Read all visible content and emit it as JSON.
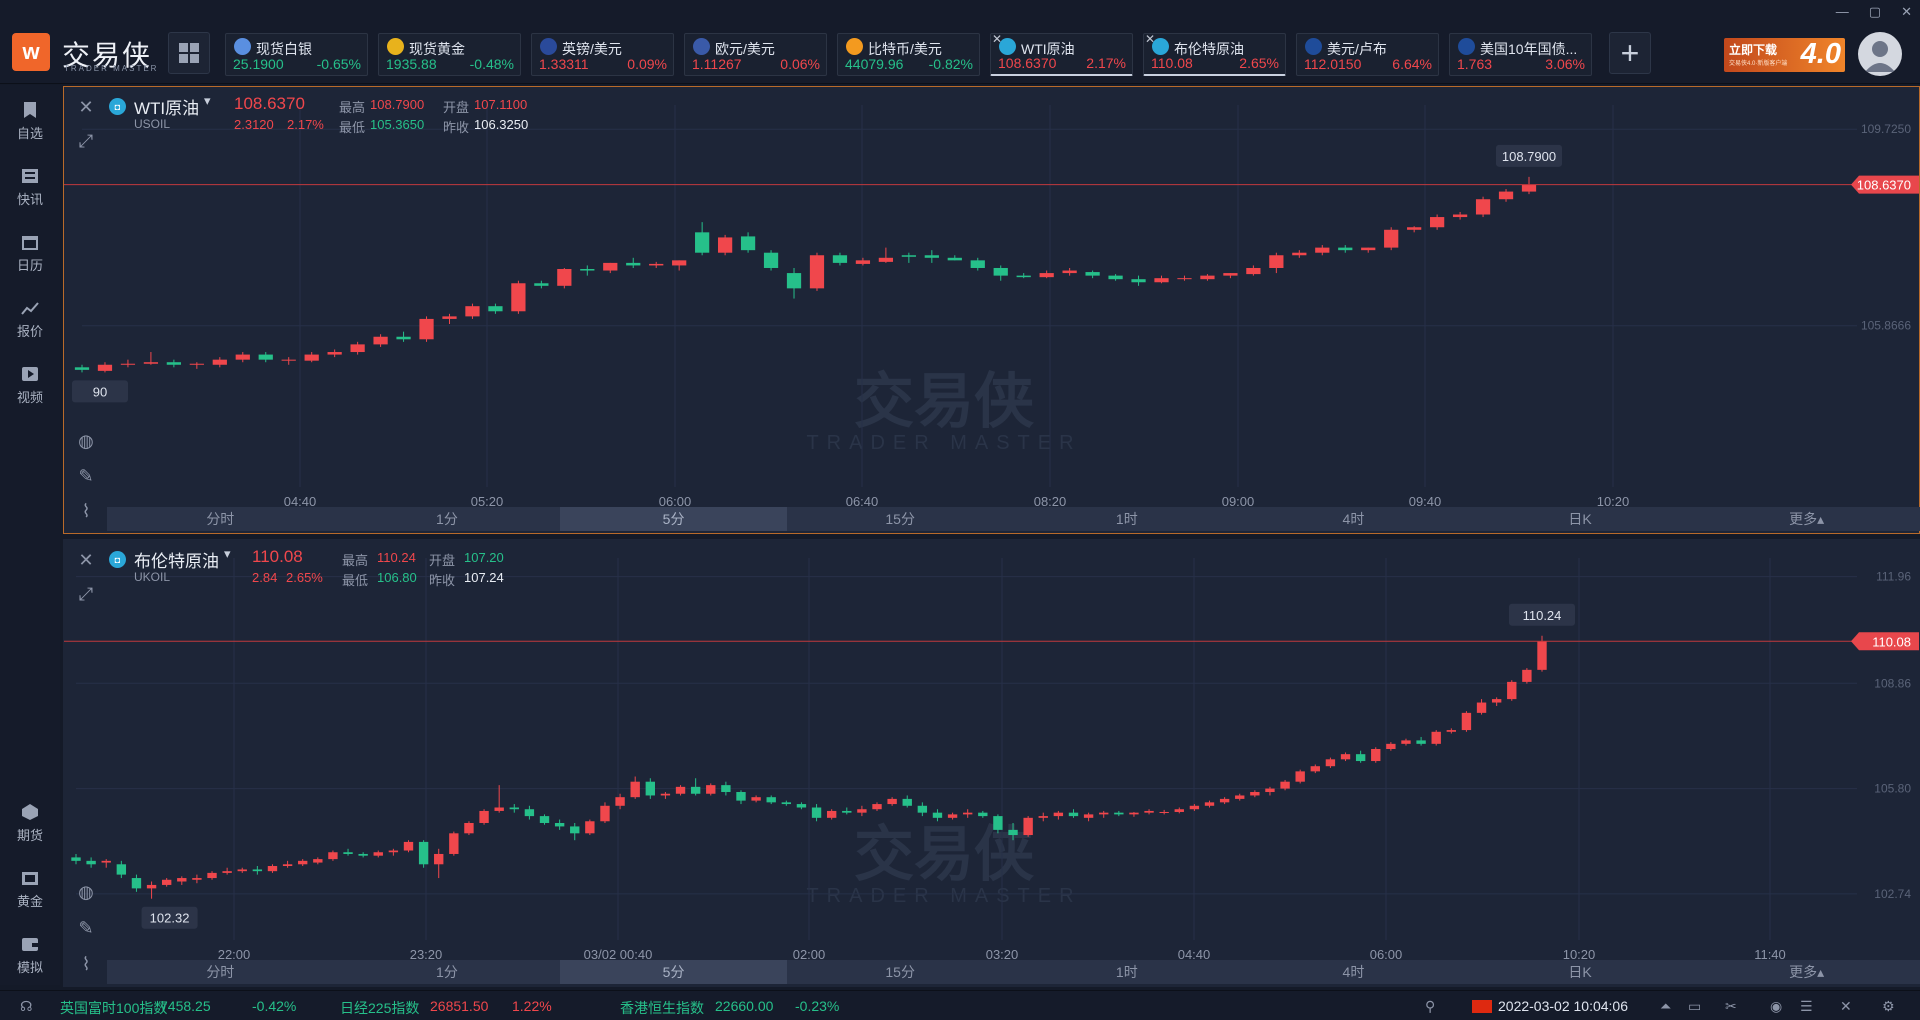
{
  "app": {
    "logo_cn": "交易侠",
    "logo_en": "TRADER MASTER"
  },
  "colors": {
    "up": "#f0474c",
    "down": "#26c08a",
    "accent": "#f0662a"
  },
  "tickers": [
    {
      "name": "现货白银",
      "price": "25.1900",
      "change": "-0.65%",
      "dir": "dn",
      "icon": "silver-icon",
      "icon_color": "#5a8fe0",
      "closable": false
    },
    {
      "name": "现货黄金",
      "price": "1935.88",
      "change": "-0.48%",
      "dir": "dn",
      "icon": "gold-icon",
      "icon_color": "#e8b21c",
      "closable": false
    },
    {
      "name": "英镑/美元",
      "price": "1.33311",
      "change": "0.09%",
      "dir": "up",
      "icon": "uk-flag-icon",
      "icon_color": "#2a4a9a",
      "closable": false
    },
    {
      "name": "欧元/美元",
      "price": "1.11267",
      "change": "0.06%",
      "dir": "up",
      "icon": "us-flag-icon",
      "icon_color": "#3a5aa8",
      "closable": false
    },
    {
      "name": "比特币/美元",
      "price": "44079.96",
      "change": "-0.82%",
      "dir": "dn",
      "icon": "bitcoin-icon",
      "icon_color": "#f39a1f",
      "closable": false
    },
    {
      "name": "WTI原油",
      "price": "108.6370",
      "change": "2.17%",
      "dir": "up",
      "icon": "oil-icon",
      "icon_color": "#2aa7d8",
      "closable": true,
      "active": true
    },
    {
      "name": "布伦特原油",
      "price": "110.08",
      "change": "2.65%",
      "dir": "up",
      "icon": "oil-icon",
      "icon_color": "#2aa7d8",
      "closable": true,
      "active": true
    },
    {
      "name": "美元/卢布",
      "price": "112.0150",
      "change": "6.64%",
      "dir": "up",
      "icon": "bar-chart-icon",
      "icon_color": "#1f4c9a",
      "closable": false
    },
    {
      "name": "美国10年国债...",
      "price": "1.763",
      "change": "3.06%",
      "dir": "up",
      "icon": "bar-chart-icon",
      "icon_color": "#1f4c9a",
      "closable": false
    }
  ],
  "banner": {
    "line1": "立即下载",
    "line2": "交易侠4.0·新版客户端",
    "line3": "4.0"
  },
  "window_controls": [
    "—",
    "▢",
    "✕"
  ],
  "sidebar_top": [
    {
      "label": "自选",
      "icon": "bookmark-icon"
    },
    {
      "label": "快讯",
      "icon": "news-icon"
    },
    {
      "label": "日历",
      "icon": "calendar-icon"
    },
    {
      "label": "报价",
      "icon": "quote-chart-icon"
    },
    {
      "label": "视频",
      "icon": "video-icon"
    }
  ],
  "sidebar_bottom": [
    {
      "label": "期货",
      "icon": "futures-icon"
    },
    {
      "label": "黄金",
      "icon": "gold-bar-icon"
    },
    {
      "label": "模拟",
      "icon": "wallet-icon"
    }
  ],
  "timeframes": [
    "分时",
    "1分",
    "5分",
    "15分",
    "1时",
    "4时",
    "日K",
    "更多▴"
  ],
  "watermark": {
    "cn": "交易侠",
    "en": "TRADER MASTER"
  },
  "panel1": {
    "name": "WTI原油",
    "symbol": "USOIL",
    "last": "108.6370",
    "chg": "2.3120",
    "pct": "2.17%",
    "high_label": "最高",
    "high": "108.7900",
    "open_label": "开盘",
    "open": "107.1100",
    "low_label": "最低",
    "low": "105.3650",
    "prev_label": "昨收",
    "prev": "106.3250",
    "axis_labels": [
      "109.7250",
      "105.8666"
    ],
    "time_labels": [
      "04:40",
      "05:20",
      "06:00",
      "06:40",
      "08:20",
      "09:00",
      "09:40",
      "10:20"
    ],
    "last_tag": "108.6370",
    "high_tag": "108.7900",
    "low_tag": "105.3650",
    "low_tag_partial": "90",
    "active_tf": 2
  },
  "panel2": {
    "name": "布伦特原油",
    "symbol": "UKOIL",
    "last": "110.08",
    "chg": "2.84",
    "pct": "2.65%",
    "high_label": "最高",
    "high": "110.24",
    "open_label": "开盘",
    "open": "107.20",
    "low_label": "最低",
    "low": "106.80",
    "prev_label": "昨收",
    "prev": "107.24",
    "axis_labels": [
      "111.96",
      "108.86",
      "105.80",
      "102.74"
    ],
    "time_labels": [
      "22:00",
      "23:20",
      "03/02 00:40",
      "02:00",
      "03:20",
      "04:40",
      "06:00",
      "10:20",
      "11:40"
    ],
    "last_tag": "110.08",
    "high_tag": "110.24",
    "low_tag": "102.32",
    "active_tf": 2
  },
  "statusbar": {
    "items": [
      {
        "name": "英国富时100指数",
        "value": "7458.25",
        "pct": "-0.42%",
        "dir": "dn"
      },
      {
        "name": "日经225指数",
        "value": "26851.50",
        "pct": "1.22%",
        "dir": "up"
      },
      {
        "name": "香港恒生指数",
        "value": "22660.00",
        "pct": "-0.23%",
        "dir": "dn"
      }
    ],
    "datetime": "2022-03-02 10:04:06"
  },
  "chart_data": [
    {
      "type": "candlestick",
      "title": "WTI原油",
      "ylim": [
        102.7,
        110.2
      ],
      "time_axis": [
        "04:40",
        "05:20",
        "06:00",
        "06:40",
        "08:20",
        "09:00",
        "09:40",
        "10:20"
      ],
      "ohlc": [
        [
          105.05,
          105.1,
          104.95,
          105.0
        ],
        [
          104.98,
          105.15,
          104.95,
          105.1
        ],
        [
          105.1,
          105.2,
          105.05,
          105.12
        ],
        [
          105.12,
          105.35,
          105.1,
          105.15
        ],
        [
          105.15,
          105.2,
          105.05,
          105.1
        ],
        [
          105.1,
          105.15,
          105.02,
          105.12
        ],
        [
          105.1,
          105.25,
          105.05,
          105.2
        ],
        [
          105.2,
          105.35,
          105.15,
          105.3
        ],
        [
          105.3,
          105.35,
          105.15,
          105.2
        ],
        [
          105.18,
          105.25,
          105.1,
          105.2
        ],
        [
          105.18,
          105.35,
          105.15,
          105.3
        ],
        [
          105.3,
          105.4,
          105.25,
          105.35
        ],
        [
          105.35,
          105.55,
          105.3,
          105.5
        ],
        [
          105.5,
          105.7,
          105.45,
          105.65
        ],
        [
          105.65,
          105.75,
          105.55,
          105.6
        ],
        [
          105.6,
          106.05,
          105.55,
          106.0
        ],
        [
          106.0,
          106.1,
          105.9,
          106.05
        ],
        [
          106.05,
          106.3,
          106.0,
          106.25
        ],
        [
          106.25,
          106.3,
          106.1,
          106.15
        ],
        [
          106.15,
          106.75,
          106.1,
          106.7
        ],
        [
          106.7,
          106.75,
          106.6,
          106.65
        ],
        [
          106.65,
          107.0,
          106.6,
          106.98
        ],
        [
          106.98,
          107.05,
          106.85,
          106.95
        ],
        [
          106.95,
          107.1,
          106.9,
          107.1
        ],
        [
          107.1,
          107.2,
          107.0,
          107.05
        ],
        [
          107.05,
          107.12,
          107.0,
          107.08
        ],
        [
          107.05,
          107.15,
          106.95,
          107.15
        ],
        [
          107.7,
          107.9,
          107.25,
          107.3
        ],
        [
          107.3,
          107.65,
          107.25,
          107.6
        ],
        [
          107.62,
          107.7,
          107.3,
          107.35
        ],
        [
          107.3,
          107.35,
          106.95,
          107.0
        ],
        [
          106.9,
          107.0,
          106.4,
          106.6
        ],
        [
          106.6,
          107.3,
          106.55,
          107.25
        ],
        [
          107.25,
          107.3,
          107.05,
          107.1
        ],
        [
          107.08,
          107.2,
          107.05,
          107.15
        ],
        [
          107.12,
          107.4,
          107.1,
          107.2
        ],
        [
          107.25,
          107.3,
          107.1,
          107.22
        ],
        [
          107.25,
          107.35,
          107.1,
          107.2
        ],
        [
          107.2,
          107.25,
          107.15,
          107.15
        ],
        [
          107.15,
          107.2,
          106.95,
          107.0
        ],
        [
          107.0,
          107.05,
          106.75,
          106.85
        ],
        [
          106.85,
          106.9,
          106.8,
          106.82
        ],
        [
          106.82,
          106.95,
          106.8,
          106.9
        ],
        [
          106.9,
          107.0,
          106.85,
          106.95
        ],
        [
          106.92,
          106.95,
          106.8,
          106.85
        ],
        [
          106.85,
          106.88,
          106.75,
          106.78
        ],
        [
          106.78,
          106.85,
          106.65,
          106.72
        ],
        [
          106.72,
          106.85,
          106.7,
          106.8
        ],
        [
          106.8,
          106.85,
          106.75,
          106.8
        ],
        [
          106.78,
          106.88,
          106.75,
          106.85
        ],
        [
          106.85,
          106.9,
          106.8,
          106.9
        ],
        [
          106.88,
          107.05,
          106.85,
          107.0
        ],
        [
          107.0,
          107.3,
          106.9,
          107.25
        ],
        [
          107.25,
          107.35,
          107.2,
          107.3
        ],
        [
          107.3,
          107.45,
          107.25,
          107.4
        ],
        [
          107.4,
          107.45,
          107.3,
          107.35
        ],
        [
          107.35,
          107.4,
          107.3,
          107.4
        ],
        [
          107.4,
          107.8,
          107.35,
          107.75
        ],
        [
          107.75,
          107.82,
          107.7,
          107.8
        ],
        [
          107.8,
          108.05,
          107.75,
          108.0
        ],
        [
          108.0,
          108.1,
          107.95,
          108.05
        ],
        [
          108.05,
          108.4,
          108.0,
          108.35
        ],
        [
          108.35,
          108.55,
          108.3,
          108.5
        ],
        [
          108.5,
          108.79,
          108.45,
          108.637
        ]
      ]
    },
    {
      "type": "candlestick",
      "title": "布伦特原油",
      "ylim": [
        101.4,
        112.5
      ],
      "time_axis": [
        "22:00",
        "23:20",
        "03/02 00:40",
        "02:00",
        "03:20",
        "04:40",
        "06:00",
        "10:20",
        "11:40"
      ],
      "ohlc": [
        [
          103.8,
          103.9,
          103.6,
          103.7
        ],
        [
          103.7,
          103.8,
          103.5,
          103.6
        ],
        [
          103.65,
          103.75,
          103.5,
          103.7
        ],
        [
          103.6,
          103.7,
          103.2,
          103.3
        ],
        [
          103.2,
          103.3,
          102.8,
          102.9
        ],
        [
          102.9,
          103.1,
          102.6,
          103.0
        ],
        [
          103.0,
          103.2,
          102.95,
          103.15
        ],
        [
          103.1,
          103.25,
          103.0,
          103.2
        ],
        [
          103.15,
          103.3,
          103.05,
          103.2
        ],
        [
          103.2,
          103.4,
          103.15,
          103.35
        ],
        [
          103.35,
          103.5,
          103.3,
          103.4
        ],
        [
          103.4,
          103.5,
          103.35,
          103.45
        ],
        [
          103.45,
          103.55,
          103.3,
          103.4
        ],
        [
          103.4,
          103.6,
          103.35,
          103.55
        ],
        [
          103.55,
          103.7,
          103.5,
          103.6
        ],
        [
          103.6,
          103.75,
          103.55,
          103.7
        ],
        [
          103.65,
          103.8,
          103.6,
          103.75
        ],
        [
          103.75,
          104.0,
          103.7,
          103.95
        ],
        [
          103.95,
          104.05,
          103.85,
          103.9
        ],
        [
          103.9,
          103.95,
          103.8,
          103.85
        ],
        [
          103.85,
          104.0,
          103.8,
          103.95
        ],
        [
          103.95,
          104.05,
          103.85,
          104.0
        ],
        [
          104.0,
          104.3,
          103.95,
          104.25
        ],
        [
          104.25,
          104.3,
          103.5,
          103.6
        ],
        [
          103.6,
          104.05,
          103.2,
          103.9
        ],
        [
          103.9,
          104.55,
          103.85,
          104.5
        ],
        [
          104.5,
          104.85,
          104.45,
          104.8
        ],
        [
          104.8,
          105.2,
          104.75,
          105.15
        ],
        [
          105.15,
          105.9,
          105.1,
          105.25
        ],
        [
          105.25,
          105.35,
          105.1,
          105.2
        ],
        [
          105.2,
          105.3,
          104.9,
          105.0
        ],
        [
          105.0,
          105.05,
          104.75,
          104.8
        ],
        [
          104.8,
          104.9,
          104.6,
          104.7
        ],
        [
          104.7,
          104.8,
          104.3,
          104.5
        ],
        [
          104.5,
          104.9,
          104.45,
          104.85
        ],
        [
          104.85,
          105.4,
          104.8,
          105.3
        ],
        [
          105.3,
          105.65,
          105.2,
          105.55
        ],
        [
          105.55,
          106.15,
          105.5,
          106.0
        ],
        [
          106.0,
          106.1,
          105.5,
          105.6
        ],
        [
          105.6,
          105.7,
          105.5,
          105.65
        ],
        [
          105.65,
          105.9,
          105.6,
          105.85
        ],
        [
          105.85,
          106.1,
          105.6,
          105.65
        ],
        [
          105.65,
          105.95,
          105.6,
          105.9
        ],
        [
          105.9,
          106.0,
          105.6,
          105.7
        ],
        [
          105.7,
          105.75,
          105.35,
          105.45
        ],
        [
          105.45,
          105.6,
          105.4,
          105.55
        ],
        [
          105.55,
          105.6,
          105.35,
          105.4
        ],
        [
          105.4,
          105.45,
          105.3,
          105.35
        ],
        [
          105.35,
          105.4,
          105.2,
          105.25
        ],
        [
          105.25,
          105.35,
          104.85,
          104.95
        ],
        [
          104.95,
          105.2,
          104.9,
          105.15
        ],
        [
          105.15,
          105.25,
          105.05,
          105.1
        ],
        [
          105.1,
          105.3,
          105.0,
          105.2
        ],
        [
          105.2,
          105.4,
          105.15,
          105.35
        ],
        [
          105.35,
          105.55,
          105.3,
          105.5
        ],
        [
          105.5,
          105.6,
          105.25,
          105.3
        ],
        [
          105.3,
          105.4,
          105.0,
          105.1
        ],
        [
          105.1,
          105.2,
          104.85,
          104.95
        ],
        [
          104.95,
          105.1,
          104.9,
          105.05
        ],
        [
          105.05,
          105.2,
          104.95,
          105.1
        ],
        [
          105.1,
          105.15,
          104.95,
          105.0
        ],
        [
          105.0,
          105.05,
          104.5,
          104.6
        ],
        [
          104.6,
          104.8,
          104.3,
          104.45
        ],
        [
          104.45,
          105.0,
          104.4,
          104.95
        ],
        [
          104.95,
          105.1,
          104.85,
          105.0
        ],
        [
          105.0,
          105.15,
          104.9,
          105.1
        ],
        [
          105.1,
          105.2,
          104.95,
          105.0
        ],
        [
          104.95,
          105.1,
          104.85,
          105.05
        ],
        [
          105.05,
          105.15,
          104.95,
          105.1
        ],
        [
          105.1,
          105.15,
          105.0,
          105.05
        ],
        [
          105.05,
          105.12,
          104.98,
          105.1
        ],
        [
          105.1,
          105.2,
          105.05,
          105.15
        ],
        [
          105.1,
          105.18,
          105.05,
          105.12
        ],
        [
          105.12,
          105.25,
          105.08,
          105.2
        ],
        [
          105.2,
          105.35,
          105.15,
          105.3
        ],
        [
          105.3,
          105.45,
          105.25,
          105.4
        ],
        [
          105.4,
          105.55,
          105.35,
          105.5
        ],
        [
          105.5,
          105.65,
          105.45,
          105.6
        ],
        [
          105.6,
          105.75,
          105.55,
          105.7
        ],
        [
          105.7,
          105.85,
          105.6,
          105.8
        ],
        [
          105.8,
          106.05,
          105.75,
          106.0
        ],
        [
          106.0,
          106.35,
          105.95,
          106.3
        ],
        [
          106.3,
          106.5,
          106.25,
          106.45
        ],
        [
          106.45,
          106.7,
          106.4,
          106.65
        ],
        [
          106.65,
          106.85,
          106.6,
          106.8
        ],
        [
          106.8,
          106.9,
          106.55,
          106.6
        ],
        [
          106.6,
          107.0,
          106.55,
          106.95
        ],
        [
          106.95,
          107.15,
          106.9,
          107.1
        ],
        [
          107.1,
          107.25,
          107.05,
          107.2
        ],
        [
          107.2,
          107.3,
          107.05,
          107.1
        ],
        [
          107.1,
          107.5,
          107.05,
          107.45
        ],
        [
          107.45,
          107.55,
          107.4,
          107.5
        ],
        [
          107.5,
          108.05,
          107.45,
          108.0
        ],
        [
          108.0,
          108.4,
          107.95,
          108.3
        ],
        [
          108.3,
          108.45,
          108.2,
          108.4
        ],
        [
          108.4,
          108.95,
          108.35,
          108.9
        ],
        [
          108.9,
          109.3,
          108.85,
          109.25
        ],
        [
          109.25,
          110.24,
          109.2,
          110.08
        ]
      ]
    }
  ]
}
